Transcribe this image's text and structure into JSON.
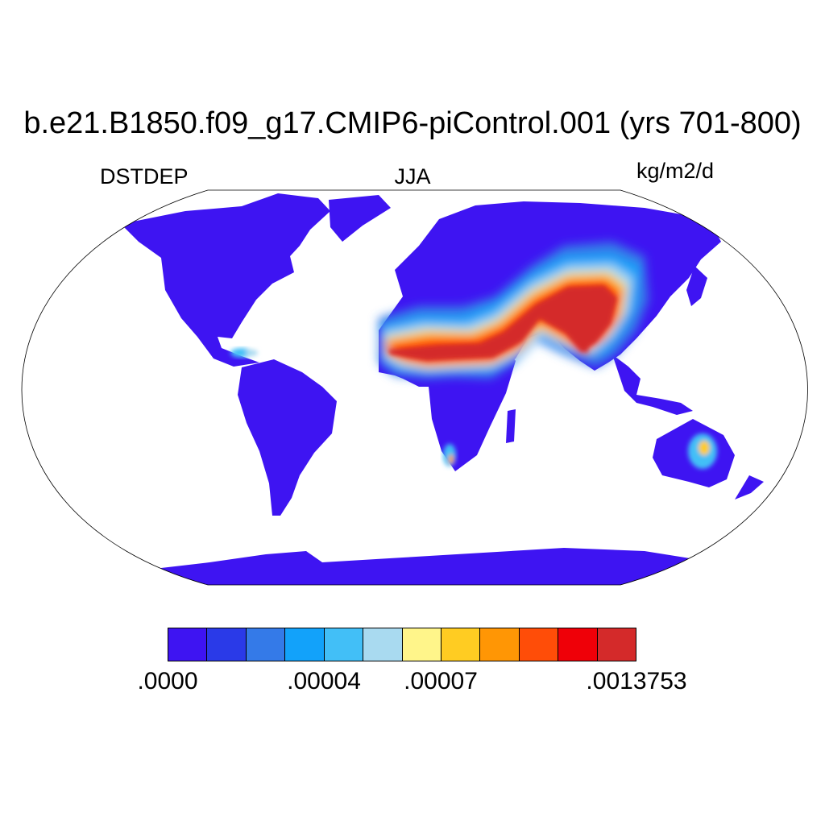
{
  "title": "b.e21.B1850.f09_g17.CMIP6-piControl.001 (yrs 701-800)",
  "left_label": "DSTDEP",
  "center_label": "JJA",
  "right_label": "kg/m2/d",
  "colorbar": {
    "colors": [
      "#3e14f2",
      "#2a3ae8",
      "#347ae8",
      "#12a2fa",
      "#42bff7",
      "#a9daf0",
      "#fff58a",
      "#ffcc22",
      "#ff9605",
      "#ff4d08",
      "#ef0008",
      "#d42a2a"
    ],
    "tick_labels": [
      ".0000",
      ".00004",
      ".00007",
      ".0013753"
    ]
  }
}
